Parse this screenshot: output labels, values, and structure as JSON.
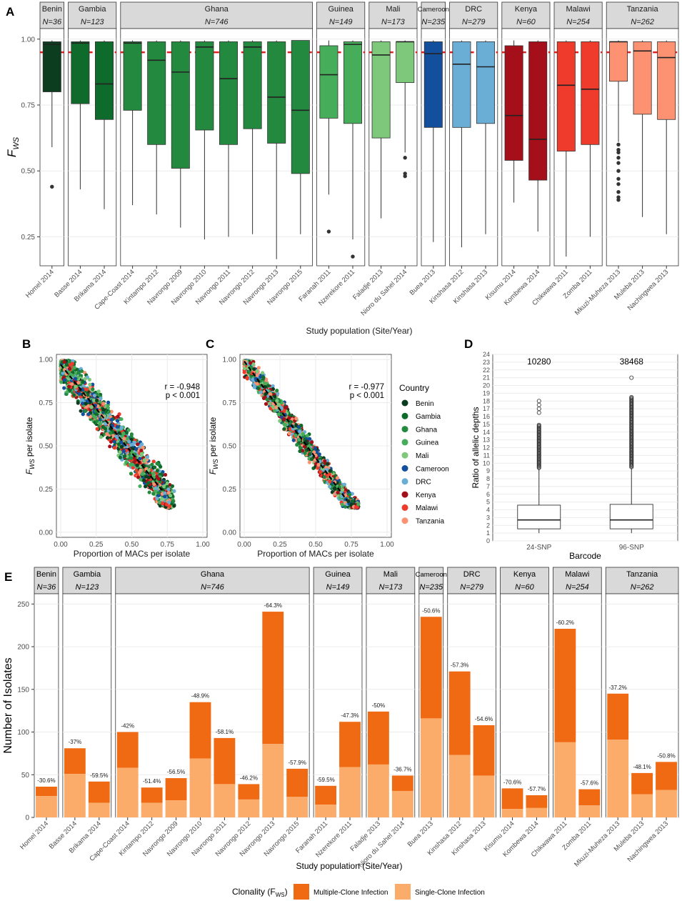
{
  "colors": {
    "country": {
      "Benin": "#0b3d1e",
      "Gambia": "#0e6b2c",
      "Ghana": "#22893f",
      "Guinea": "#46ad5b",
      "Mali": "#7dc87b",
      "Cameroon": "#124f9c",
      "DRC": "#6aaed6",
      "Kenya": "#a50f1a",
      "Malawi": "#ef3b2c",
      "Tanzania": "#fc9272"
    },
    "multiple": "#f06a13",
    "single": "#fbab6a",
    "threshold": "#e41a1c",
    "strip": "#d9d9d9"
  },
  "chart_data": [
    {
      "panel_label": "A",
      "type": "box",
      "ylabel_main": "F",
      "ylabel_sub": "WS",
      "xlabel": "Study population (Site/Year)",
      "yticks": [
        "0.25",
        "0.50",
        "0.75",
        "1.00"
      ],
      "ytick_values": [
        0.25,
        0.5,
        0.75,
        1.0
      ],
      "ylim": [
        0.14,
        1.04
      ],
      "threshold": 0.95,
      "facets": [
        {
          "country": "Benin",
          "n": "N=36",
          "pops": [
            {
              "label": "Homel 2014",
              "whislo": 0.59,
              "q1": 0.8,
              "med": 0.98,
              "q3": 0.99,
              "whishi": 0.995,
              "out": [
                0.44
              ]
            }
          ]
        },
        {
          "country": "Gambia",
          "n": "N=123",
          "pops": [
            {
              "label": "Basse 2014",
              "whislo": 0.43,
              "q1": 0.755,
              "med": 0.985,
              "q3": 0.99,
              "whishi": 0.995,
              "out": []
            },
            {
              "label": "Brikama 2014",
              "whislo": 0.355,
              "q1": 0.695,
              "med": 0.83,
              "q3": 0.99,
              "whishi": 0.995,
              "out": []
            }
          ]
        },
        {
          "country": "Ghana",
          "n": "N=746",
          "pops": [
            {
              "label": "Cape-Coast 2014",
              "whislo": 0.37,
              "q1": 0.73,
              "med": 0.985,
              "q3": 0.99,
              "whishi": 0.995,
              "out": []
            },
            {
              "label": "Kintampo 2012",
              "whislo": 0.335,
              "q1": 0.6,
              "med": 0.92,
              "q3": 0.99,
              "whishi": 0.995,
              "out": []
            },
            {
              "label": "Navrongo 2009",
              "whislo": 0.285,
              "q1": 0.51,
              "med": 0.875,
              "q3": 0.99,
              "whishi": 0.995,
              "out": []
            },
            {
              "label": "Navrongo 2010",
              "whislo": 0.24,
              "q1": 0.655,
              "med": 0.97,
              "q3": 0.99,
              "whishi": 0.995,
              "out": []
            },
            {
              "label": "Navrongo 2011",
              "whislo": 0.25,
              "q1": 0.6,
              "med": 0.85,
              "q3": 0.99,
              "whishi": 0.995,
              "out": []
            },
            {
              "label": "Navrongo 2012",
              "whislo": 0.26,
              "q1": 0.66,
              "med": 0.97,
              "q3": 0.99,
              "whishi": 0.995,
              "out": []
            },
            {
              "label": "Navrongo 2013",
              "whislo": 0.165,
              "q1": 0.605,
              "med": 0.78,
              "q3": 0.99,
              "whishi": 0.995,
              "out": []
            },
            {
              "label": "Navrongo 2015",
              "whislo": 0.26,
              "q1": 0.49,
              "med": 0.73,
              "q3": 0.995,
              "whishi": 0.995,
              "out": []
            }
          ]
        },
        {
          "country": "Guinea",
          "n": "N=149",
          "pops": [
            {
              "label": "Faranah 2011",
              "whislo": 0.41,
              "q1": 0.7,
              "med": 0.865,
              "q3": 0.975,
              "whishi": 0.995,
              "out": [
                0.27
              ]
            },
            {
              "label": "Nzerekore 2011",
              "whislo": 0.24,
              "q1": 0.68,
              "med": 0.98,
              "q3": 0.99,
              "whishi": 0.995,
              "out": [
                0.175
              ]
            }
          ]
        },
        {
          "country": "Mali",
          "n": "N=173",
          "pops": [
            {
              "label": "Faladje 2013",
              "whislo": 0.32,
              "q1": 0.625,
              "med": 0.94,
              "q3": 0.99,
              "whishi": 0.995,
              "out": []
            },
            {
              "label": "Nioro du Sahel 2014",
              "whislo": 0.57,
              "q1": 0.835,
              "med": 0.99,
              "q3": 0.99,
              "whishi": 0.995,
              "out": [
                0.55,
                0.49,
                0.48
              ]
            }
          ]
        },
        {
          "country": "Cameroon",
          "n": "N=235",
          "pops": [
            {
              "label": "Buea 2013",
              "whislo": 0.23,
              "q1": 0.665,
              "med": 0.945,
              "q3": 0.99,
              "whishi": 0.995,
              "out": []
            }
          ]
        },
        {
          "country": "DRC",
          "n": "N=279",
          "pops": [
            {
              "label": "Kinshasa 2012",
              "whislo": 0.21,
              "q1": 0.665,
              "med": 0.905,
              "q3": 0.99,
              "whishi": 0.995,
              "out": []
            },
            {
              "label": "Kinshasa 2013",
              "whislo": 0.26,
              "q1": 0.68,
              "med": 0.895,
              "q3": 0.99,
              "whishi": 0.995,
              "out": []
            }
          ]
        },
        {
          "country": "Kenya",
          "n": "N=60",
          "pops": [
            {
              "label": "Kisumu 2014",
              "whislo": 0.38,
              "q1": 0.54,
              "med": 0.71,
              "q3": 0.975,
              "whishi": 0.995,
              "out": []
            },
            {
              "label": "Kombewa 2014",
              "whislo": 0.27,
              "q1": 0.465,
              "med": 0.62,
              "q3": 0.99,
              "whishi": 0.995,
              "out": []
            }
          ]
        },
        {
          "country": "Malawi",
          "n": "N=254",
          "pops": [
            {
              "label": "Chikwawa 2011",
              "whislo": 0.175,
              "q1": 0.575,
              "med": 0.825,
              "q3": 0.99,
              "whishi": 0.995,
              "out": []
            },
            {
              "label": "Zomba 2011",
              "whislo": 0.25,
              "q1": 0.6,
              "med": 0.81,
              "q3": 0.99,
              "whishi": 0.995,
              "out": []
            }
          ]
        },
        {
          "country": "Tanzania",
          "n": "N=262",
          "pops": [
            {
              "label": "Mkuzi-Muheza 2013",
              "whislo": 0.61,
              "q1": 0.84,
              "med": 0.99,
              "q3": 0.99,
              "whishi": 0.995,
              "out": [
                0.6,
                0.58,
                0.57,
                0.55,
                0.53,
                0.5,
                0.47,
                0.45,
                0.42,
                0.4,
                0.39
              ]
            },
            {
              "label": "Muleba 2013",
              "whislo": 0.325,
              "q1": 0.715,
              "med": 0.955,
              "q3": 0.99,
              "whishi": 0.995,
              "out": []
            },
            {
              "label": "Nachingwea 2013",
              "whislo": 0.26,
              "q1": 0.695,
              "med": 0.93,
              "q3": 0.99,
              "whishi": 0.995,
              "out": []
            }
          ]
        }
      ]
    },
    {
      "panel_label": "B",
      "type": "scatter",
      "xlabel": "Proportion of MACs per isolate",
      "ylabel_main": "F",
      "ylabel_sub": "WS",
      "ylabel_rest": " per isolate",
      "xticks": [
        "0.00",
        "0.25",
        "0.50",
        "0.75",
        "1.00"
      ],
      "yticks": [
        "0.00",
        "0.25",
        "0.50",
        "0.75",
        "1.00"
      ],
      "tick_values": [
        0,
        0.25,
        0.5,
        0.75,
        1.0
      ],
      "xlim": [
        -0.03,
        1.03
      ],
      "ylim": [
        -0.03,
        1.03
      ],
      "r_text": "r = -0.948",
      "p_text": "p < 0.001",
      "trend": {
        "intercept": 0.97,
        "slope": -1.02,
        "x_start": 0.0,
        "x_end": 0.72
      },
      "spread": 0.065,
      "point_count": 1500
    },
    {
      "panel_label": "C",
      "type": "scatter",
      "xlabel": "Proportion of MACs per isolate",
      "ylabel_main": "F",
      "ylabel_sub": "WS",
      "ylabel_rest": " per isolate",
      "xticks": [
        "0.00",
        "0.25",
        "0.50",
        "0.75",
        "1.00"
      ],
      "yticks": [
        "0.00",
        "0.25",
        "0.50",
        "0.75",
        "1.00"
      ],
      "tick_values": [
        0,
        0.25,
        0.5,
        0.75,
        1.0
      ],
      "xlim": [
        -0.03,
        1.03
      ],
      "ylim": [
        -0.03,
        1.03
      ],
      "r_text": "r = -0.977",
      "p_text": "p < 0.001",
      "trend": {
        "intercept": 0.99,
        "slope": -1.12,
        "x_start": 0.0,
        "x_end": 0.72
      },
      "spread": 0.04,
      "point_count": 1500,
      "legend_title": "Country",
      "legend": [
        "Benin",
        "Gambia",
        "Ghana",
        "Guinea",
        "Mali",
        "Cameroon",
        "DRC",
        "Kenya",
        "Malawi",
        "Tanzania"
      ]
    },
    {
      "panel_label": "D",
      "type": "box",
      "xlabel": "Barcode",
      "ylabel": "Ratio of allelic depths",
      "yticks": [
        "0",
        "1",
        "2",
        "3",
        "4",
        "5",
        "6",
        "7",
        "8",
        "9",
        "10",
        "11",
        "12",
        "13",
        "14",
        "15",
        "16",
        "17",
        "18",
        "19",
        "20",
        "21",
        "22",
        "23",
        "24"
      ],
      "ylim": [
        0,
        24
      ],
      "boxes": [
        {
          "label": "24-SNP",
          "count": "10280",
          "whislo": 1.0,
          "q1": 1.55,
          "med": 2.7,
          "q3": 4.6,
          "whishi": 9.3,
          "out_lo": 9.4,
          "out_hi": 15.0,
          "extra_out": [
            16.5,
            17.0,
            17.5,
            18.0
          ]
        },
        {
          "label": "96-SNP",
          "count": "38468",
          "whislo": 1.0,
          "q1": 1.55,
          "med": 2.7,
          "q3": 4.7,
          "whishi": 9.4,
          "out_lo": 9.5,
          "out_hi": 18.6,
          "extra_out": [
            21.0
          ]
        }
      ]
    },
    {
      "panel_label": "E",
      "type": "stacked-bar",
      "ylabel": "Number of Isolates",
      "xlabel": "Study population (Site/Year)",
      "yticks": [
        "0",
        "50",
        "100",
        "150",
        "200",
        "250"
      ],
      "ytick_values": [
        0,
        50,
        100,
        150,
        200,
        250
      ],
      "ylim": [
        0,
        262
      ],
      "legend_title_main": "Clonality (F",
      "legend_title_sub": "WS",
      "legend_title_end": ")",
      "series_names": [
        "Multiple-Clone Infection",
        "Single-Clone Infection"
      ],
      "facets": [
        {
          "country": "Benin",
          "n": "N=36",
          "pops": [
            {
              "label": "Homel 2014",
              "total": 36,
              "single": 25,
              "pct": "-30.6%"
            }
          ]
        },
        {
          "country": "Gambia",
          "n": "N=123",
          "pops": [
            {
              "label": "Basse 2014",
              "total": 81,
              "single": 51,
              "pct": "-37%"
            },
            {
              "label": "Brikama 2014",
              "total": 42,
              "single": 17,
              "pct": "-59.5%"
            }
          ]
        },
        {
          "country": "Ghana",
          "n": "N=746",
          "pops": [
            {
              "label": "Cape-Coast 2014",
              "total": 100,
              "single": 58,
              "pct": "-42%"
            },
            {
              "label": "Kintampo 2012",
              "total": 35,
              "single": 17,
              "pct": "-51.4%"
            },
            {
              "label": "Navrongo 2009",
              "total": 46,
              "single": 20,
              "pct": "-56.5%"
            },
            {
              "label": "Navrongo 2010",
              "total": 135,
              "single": 69,
              "pct": "-48.9%"
            },
            {
              "label": "Navrongo 2011",
              "total": 93,
              "single": 39,
              "pct": "-58.1%"
            },
            {
              "label": "Navrongo 2012",
              "total": 39,
              "single": 21,
              "pct": "-46.2%"
            },
            {
              "label": "Navrongo 2013",
              "total": 241,
              "single": 86,
              "pct": "-64.3%"
            },
            {
              "label": "Navrongo 2015",
              "total": 57,
              "single": 24,
              "pct": "-57.9%"
            }
          ]
        },
        {
          "country": "Guinea",
          "n": "N=149",
          "pops": [
            {
              "label": "Faranah 2011",
              "total": 37,
              "single": 15,
              "pct": "-59.5%"
            },
            {
              "label": "Nzerekore 2011",
              "total": 112,
              "single": 59,
              "pct": "-47.3%"
            }
          ]
        },
        {
          "country": "Mali",
          "n": "N=173",
          "pops": [
            {
              "label": "Faladje 2013",
              "total": 124,
              "single": 62,
              "pct": "-50%"
            },
            {
              "label": "Nioro du Sahel 2014",
              "total": 49,
              "single": 31,
              "pct": "-36.7%"
            }
          ]
        },
        {
          "country": "Cameroon",
          "n": "N=235",
          "pops": [
            {
              "label": "Buea 2013",
              "total": 235,
              "single": 116,
              "pct": "-50.6%"
            }
          ]
        },
        {
          "country": "DRC",
          "n": "N=279",
          "pops": [
            {
              "label": "Kinshasa 2012",
              "total": 171,
              "single": 73,
              "pct": "-57.3%"
            },
            {
              "label": "Kinshasa 2013",
              "total": 108,
              "single": 49,
              "pct": "-54.6%"
            }
          ]
        },
        {
          "country": "Kenya",
          "n": "N=60",
          "pops": [
            {
              "label": "Kisumu 2014",
              "total": 34,
              "single": 10,
              "pct": "-70.6%"
            },
            {
              "label": "Kombewa 2014",
              "total": 26,
              "single": 11,
              "pct": "-57.7%"
            }
          ]
        },
        {
          "country": "Malawi",
          "n": "N=254",
          "pops": [
            {
              "label": "Chikwawa 2011",
              "total": 221,
              "single": 88,
              "pct": "-60.2%"
            },
            {
              "label": "Zomba 2011",
              "total": 33,
              "single": 14,
              "pct": "-57.6%"
            }
          ]
        },
        {
          "country": "Tanzania",
          "n": "N=262",
          "pops": [
            {
              "label": "Mkuzi-Muheza 2013",
              "total": 145,
              "single": 91,
              "pct": "-37.2%"
            },
            {
              "label": "Muleba 2013",
              "total": 52,
              "single": 27,
              "pct": "-48.1%"
            },
            {
              "label": "Nachingwea 2013",
              "total": 65,
              "single": 32,
              "pct": "-50.8%"
            }
          ]
        }
      ]
    }
  ]
}
